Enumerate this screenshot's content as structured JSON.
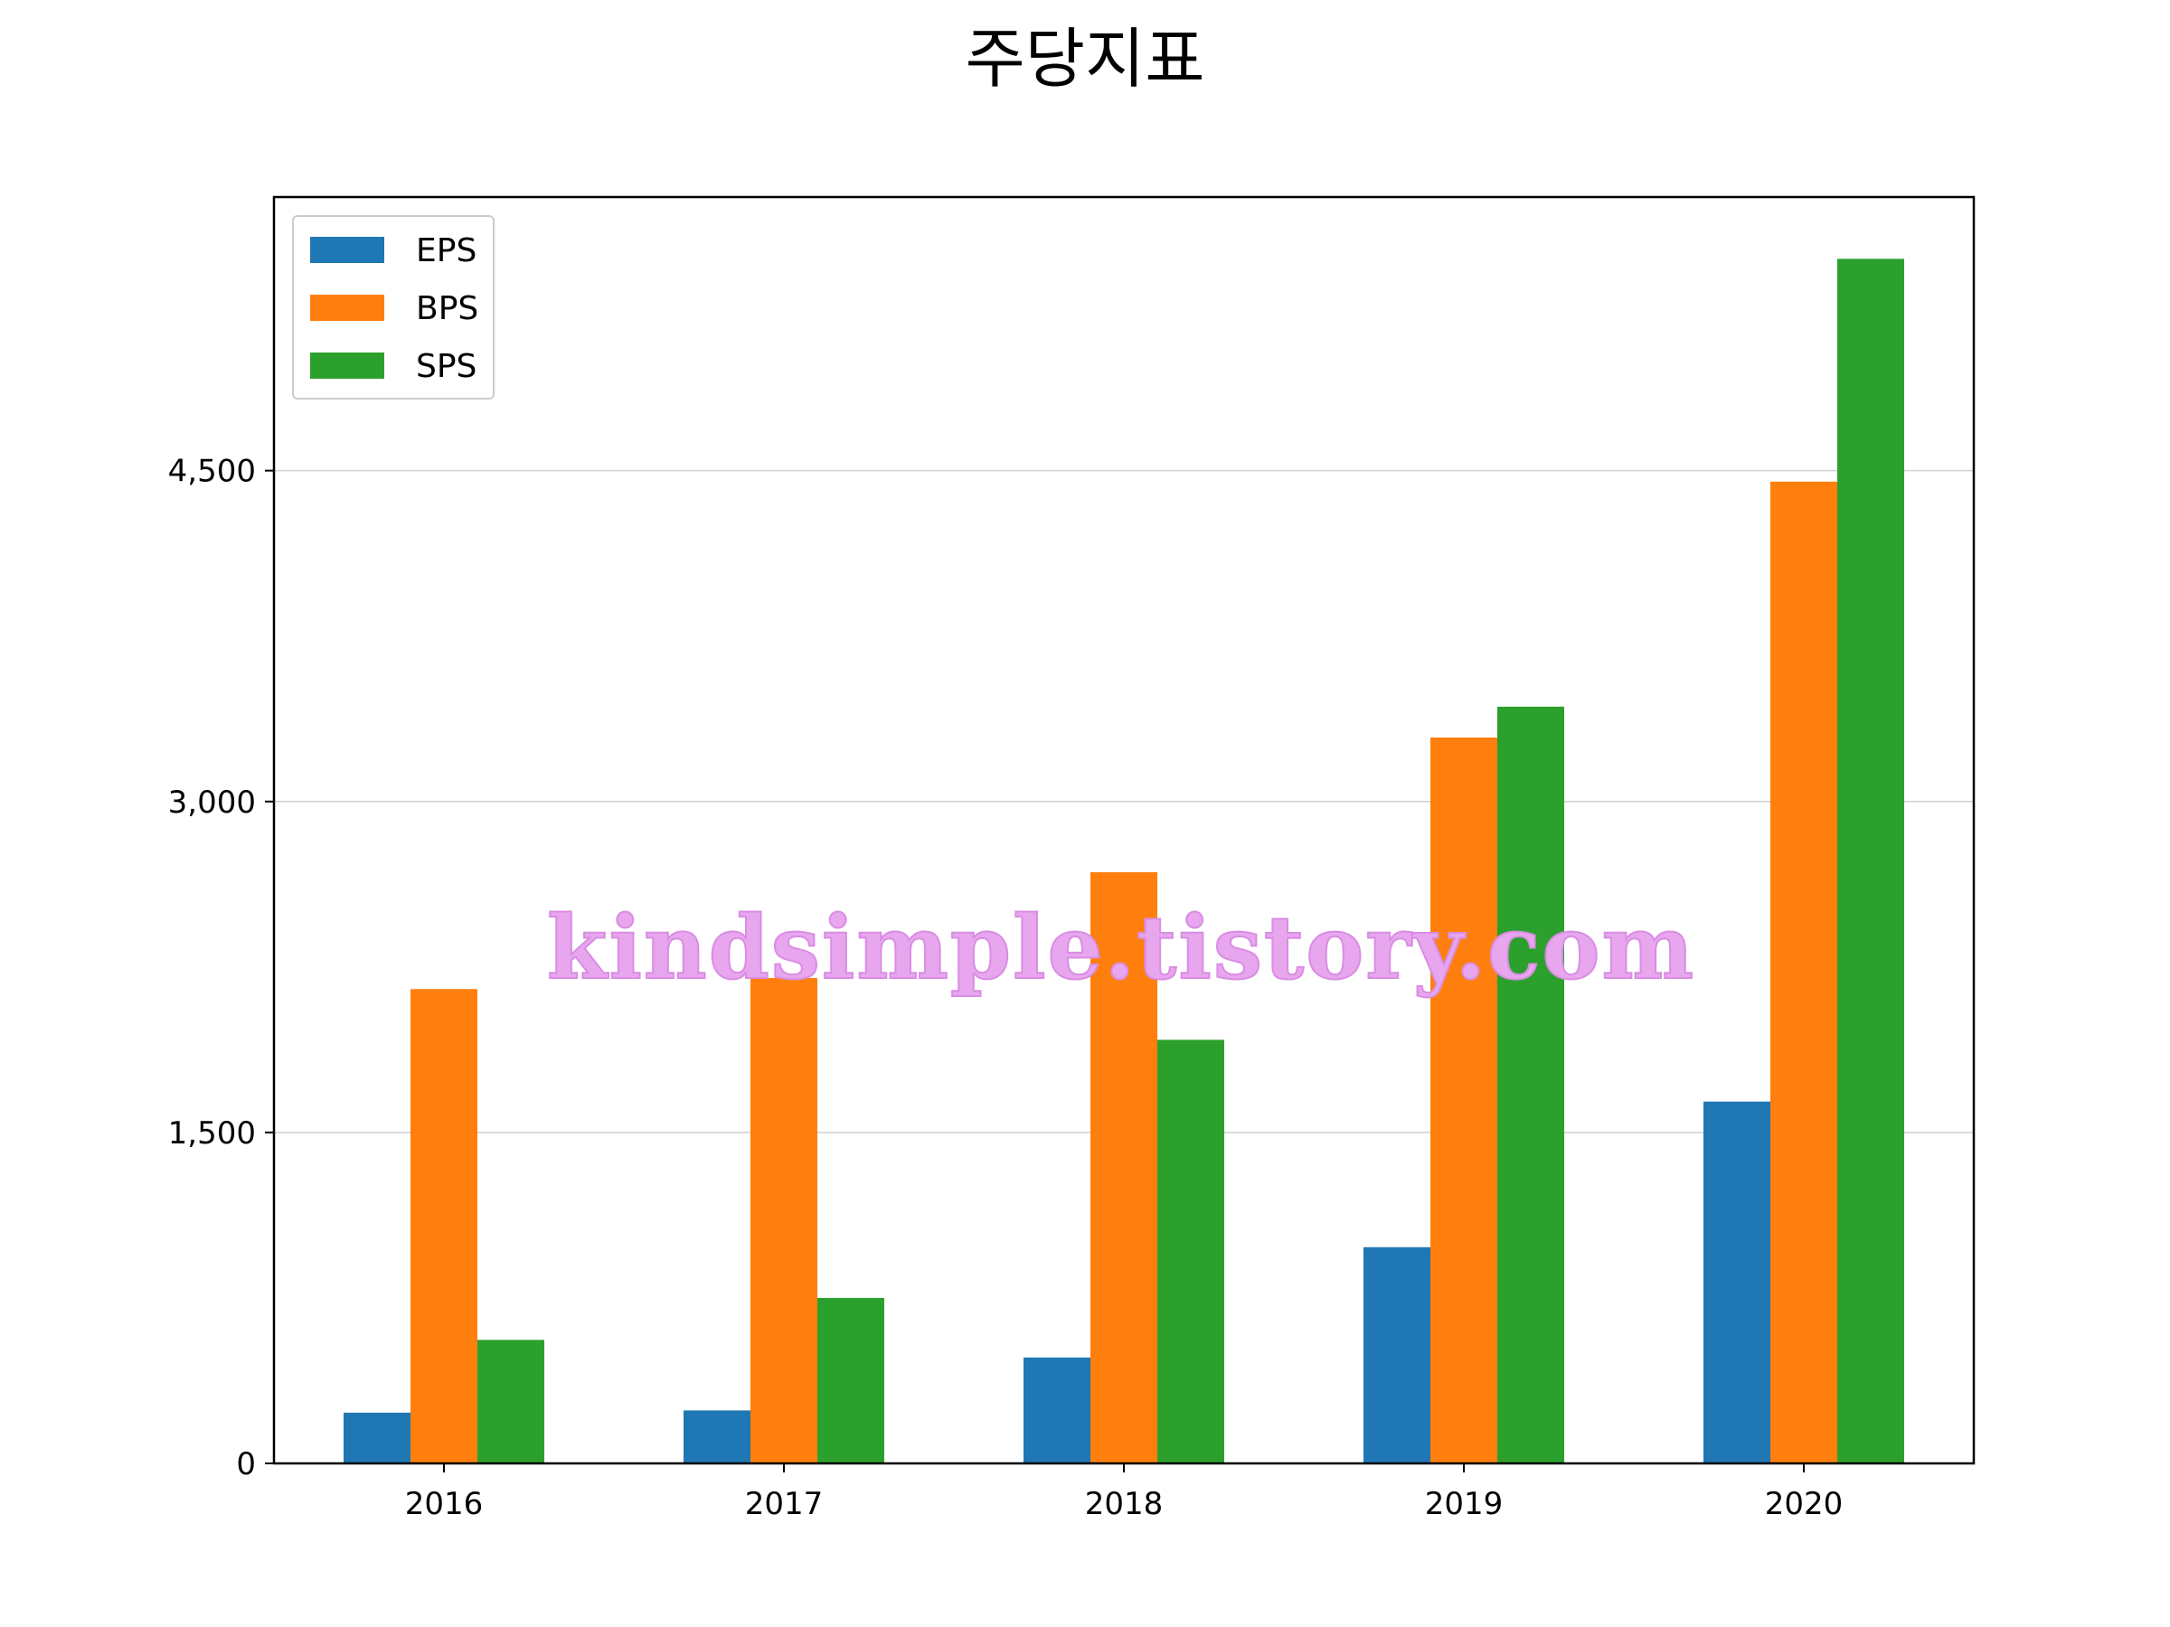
{
  "chart_data": {
    "type": "bar",
    "title": "주당지표",
    "categories": [
      "2016",
      "2017",
      "2018",
      "2019",
      "2020"
    ],
    "series": [
      {
        "name": "EPS",
        "color": "#1f77b4",
        "values": [
          230,
          240,
          480,
          980,
          1640
        ]
      },
      {
        "name": "BPS",
        "color": "#ff7f0e",
        "values": [
          2150,
          2200,
          2680,
          3290,
          4450
        ]
      },
      {
        "name": "SPS",
        "color": "#2ca02c",
        "values": [
          560,
          750,
          1920,
          3430,
          5460
        ]
      }
    ],
    "y_ticks": [
      0,
      1500,
      3000,
      4500
    ],
    "y_tick_labels": [
      "0",
      "1,500",
      "3,000",
      "4,500"
    ],
    "ylim": [
      0,
      5740
    ],
    "grid": "horizontal",
    "legend_position": "top-left",
    "watermark": "kindsimple.tistory.com"
  }
}
